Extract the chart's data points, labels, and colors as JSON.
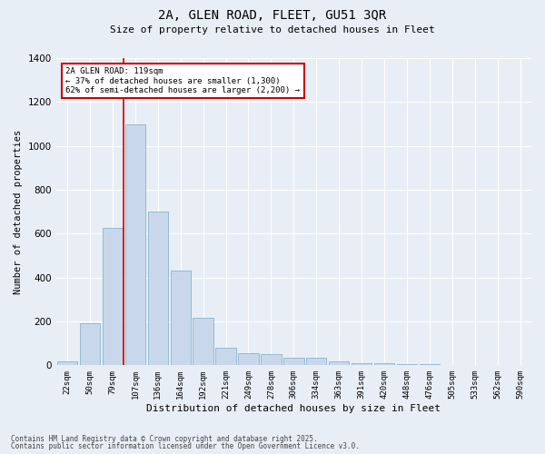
{
  "title_line1": "2A, GLEN ROAD, FLEET, GU51 3QR",
  "title_line2": "Size of property relative to detached houses in Fleet",
  "xlabel": "Distribution of detached houses by size in Fleet",
  "ylabel": "Number of detached properties",
  "bar_color": "#c8d8ea",
  "bar_edgecolor": "#7aaac8",
  "background_color": "#e8eef5",
  "plot_bg_color": "#e8eef5",
  "categories": [
    "22sqm",
    "50sqm",
    "79sqm",
    "107sqm",
    "136sqm",
    "164sqm",
    "192sqm",
    "221sqm",
    "249sqm",
    "278sqm",
    "306sqm",
    "334sqm",
    "363sqm",
    "391sqm",
    "420sqm",
    "448sqm",
    "476sqm",
    "505sqm",
    "533sqm",
    "562sqm",
    "590sqm"
  ],
  "values": [
    20,
    190,
    625,
    1100,
    700,
    430,
    215,
    80,
    55,
    50,
    35,
    35,
    20,
    10,
    8,
    5,
    4,
    2,
    1,
    1,
    1
  ],
  "ylim": [
    0,
    1400
  ],
  "yticks": [
    0,
    200,
    400,
    600,
    800,
    1000,
    1200,
    1400
  ],
  "annotation_text": "2A GLEN ROAD: 119sqm\n← 37% of detached houses are smaller (1,300)\n62% of semi-detached houses are larger (2,200) →",
  "vline_x": 2.5,
  "vline_color": "#cc0000",
  "annotation_box_color": "#cc0000",
  "footer_line1": "Contains HM Land Registry data © Crown copyright and database right 2025.",
  "footer_line2": "Contains public sector information licensed under the Open Government Licence v3.0."
}
